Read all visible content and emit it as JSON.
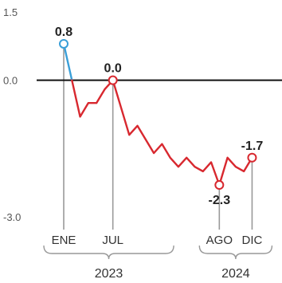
{
  "chart_data": {
    "type": "line",
    "ylim": [
      -3.0,
      1.5
    ],
    "y_ticks": [
      {
        "value": 1.5,
        "label": "1.5"
      },
      {
        "value": 0.0,
        "label": "0.0"
      },
      {
        "value": -3.0,
        "label": "-3.0"
      }
    ],
    "x_tick_labels": [
      {
        "index": 0,
        "label": "ENE"
      },
      {
        "index": 6,
        "label": "JUL"
      },
      {
        "index": 19,
        "label": "AGO"
      },
      {
        "index": 23,
        "label": "DIC"
      }
    ],
    "year_groups": [
      {
        "label": "2023",
        "from": 0,
        "to": 11
      },
      {
        "label": "2024",
        "from": 19,
        "to": 23
      }
    ],
    "series": [
      {
        "values": [
          0.8,
          0.0,
          -0.8,
          -0.5,
          -0.5,
          -0.2,
          0.0,
          -0.6,
          -1.2,
          -1.0,
          -1.3,
          -1.6,
          -1.4,
          -1.7,
          -1.9,
          -1.7,
          -1.9,
          -2.0,
          -1.8,
          -2.3,
          -1.7,
          -1.9,
          -2.0,
          -1.7
        ],
        "color_segments": [
          {
            "from": 0,
            "to": 1,
            "color": "#3a9fd8"
          },
          {
            "from": 1,
            "to": 23,
            "color": "#d8282f"
          }
        ]
      }
    ],
    "data_labels": [
      {
        "index": 0,
        "text": "0.8",
        "position": "above"
      },
      {
        "index": 6,
        "text": "0.0",
        "position": "above"
      },
      {
        "index": 19,
        "text": "-2.3",
        "position": "below"
      },
      {
        "index": 23,
        "text": "-1.7",
        "position": "above"
      }
    ],
    "colors": {
      "zero_line": "#111111",
      "reference_lines": "#9a9a9a",
      "bracket": "#999999"
    }
  }
}
